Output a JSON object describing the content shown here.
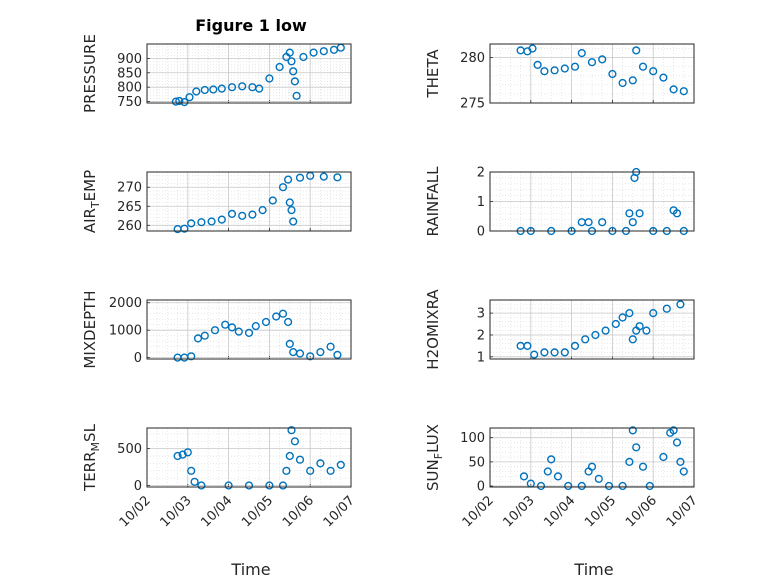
{
  "figure": {
    "title": "Figure 1 low",
    "marker_color": "#0072BD",
    "x_tick_labels": [
      "10/02",
      "10/03",
      "10/04",
      "10/05",
      "10/06",
      "10/07"
    ],
    "x_axis_label": "Time"
  },
  "chart_data": [
    {
      "type": "scatter",
      "name": "pressure",
      "ylabel": "PRESSURE",
      "title": "Figure 1 low",
      "ylim": [
        745,
        950
      ],
      "yticks": [
        750,
        800,
        850,
        900
      ],
      "grid": true,
      "minor_grid": true,
      "x": [
        "10/02 17:00",
        "10/02 19:00",
        "10/02 22:00",
        "10/03 01:00",
        "10/03 05:00",
        "10/03 10:00",
        "10/03 15:00",
        "10/03 20:00",
        "10/04 02:00",
        "10/04 08:00",
        "10/04 14:00",
        "10/04 18:00",
        "10/05 00:00",
        "10/05 06:00",
        "10/05 10:00",
        "10/05 12:00",
        "10/05 13:00",
        "10/05 14:00",
        "10/05 15:00",
        "10/05 16:00",
        "10/05 20:00",
        "10/06 02:00",
        "10/06 08:00",
        "10/06 14:00",
        "10/06 18:00"
      ],
      "values": [
        750,
        752,
        748,
        765,
        785,
        790,
        792,
        795,
        800,
        803,
        800,
        795,
        830,
        870,
        905,
        920,
        890,
        855,
        820,
        770,
        905,
        920,
        925,
        930,
        937
      ]
    },
    {
      "type": "scatter",
      "name": "theta",
      "ylabel": "THETA",
      "ylim": [
        275,
        281.5
      ],
      "yticks": [
        275,
        280
      ],
      "grid": true,
      "minor_grid": true,
      "x": [
        "10/02 18:00",
        "10/02 22:00",
        "10/03 01:00",
        "10/03 04:00",
        "10/03 08:00",
        "10/03 14:00",
        "10/03 20:00",
        "10/04 02:00",
        "10/04 06:00",
        "10/04 12:00",
        "10/04 18:00",
        "10/05 00:00",
        "10/05 06:00",
        "10/05 12:00",
        "10/05 14:00",
        "10/05 18:00",
        "10/06 00:00",
        "10/06 06:00",
        "10/06 12:00",
        "10/06 18:00"
      ],
      "values": [
        280.8,
        280.7,
        281.0,
        279.2,
        278.5,
        278.6,
        278.8,
        279.0,
        280.5,
        279.5,
        279.8,
        278.2,
        277.2,
        277.5,
        280.8,
        279.0,
        278.5,
        277.8,
        276.5,
        276.3
      ]
    },
    {
      "type": "scatter",
      "name": "air_temp",
      "ylabel": "AIR_TEMP",
      "ylim": [
        258.5,
        274
      ],
      "yticks": [
        260,
        265,
        270
      ],
      "grid": true,
      "minor_grid": true,
      "x": [
        "10/02 18:00",
        "10/02 22:00",
        "10/03 02:00",
        "10/03 08:00",
        "10/03 14:00",
        "10/03 20:00",
        "10/04 02:00",
        "10/04 08:00",
        "10/04 14:00",
        "10/04 20:00",
        "10/05 02:00",
        "10/05 08:00",
        "10/05 11:00",
        "10/05 12:00",
        "10/05 13:00",
        "10/05 14:00",
        "10/05 18:00",
        "10/06 00:00",
        "10/06 08:00",
        "10/06 16:00"
      ],
      "values": [
        259.0,
        259.1,
        260.5,
        260.8,
        261.0,
        261.5,
        263.0,
        262.5,
        262.8,
        264.0,
        266.5,
        270.0,
        272.0,
        266.0,
        264.0,
        261.0,
        272.5,
        273.0,
        272.8,
        272.6
      ]
    },
    {
      "type": "scatter",
      "name": "rainfall",
      "ylabel": "RAINFALL",
      "ylim": [
        0,
        2
      ],
      "yticks": [
        0,
        1,
        2
      ],
      "grid": true,
      "minor_grid": true,
      "x": [
        "10/02 18:00",
        "10/03 00:00",
        "10/03 12:00",
        "10/04 00:00",
        "10/04 06:00",
        "10/04 10:00",
        "10/04 12:00",
        "10/04 18:00",
        "10/05 00:00",
        "10/05 08:00",
        "10/05 10:00",
        "10/05 12:00",
        "10/05 13:00",
        "10/05 14:00",
        "10/05 16:00",
        "10/06 00:00",
        "10/06 08:00",
        "10/06 12:00",
        "10/06 14:00",
        "10/06 18:00"
      ],
      "values": [
        0,
        0,
        0,
        0,
        0.3,
        0.3,
        0,
        0.3,
        0,
        0,
        0.6,
        0.3,
        1.8,
        2.0,
        0.6,
        0,
        0,
        0.7,
        0.6,
        0
      ]
    },
    {
      "type": "scatter",
      "name": "mixdepth",
      "ylabel": "MIXDEPTH",
      "ylim": [
        -50,
        2100
      ],
      "yticks": [
        0,
        1000,
        2000
      ],
      "grid": true,
      "minor_grid": true,
      "x": [
        "10/02 18:00",
        "10/02 22:00",
        "10/03 02:00",
        "10/03 06:00",
        "10/03 10:00",
        "10/03 16:00",
        "10/03 22:00",
        "10/04 02:00",
        "10/04 06:00",
        "10/04 12:00",
        "10/04 16:00",
        "10/04 22:00",
        "10/05 04:00",
        "10/05 08:00",
        "10/05 11:00",
        "10/05 12:00",
        "10/05 14:00",
        "10/05 18:00",
        "10/06 00:00",
        "10/06 06:00",
        "10/06 12:00",
        "10/06 16:00"
      ],
      "values": [
        0,
        0,
        50,
        700,
        800,
        1000,
        1200,
        1100,
        950,
        900,
        1150,
        1300,
        1500,
        1600,
        1300,
        500,
        200,
        150,
        50,
        200,
        400,
        100
      ]
    },
    {
      "type": "scatter",
      "name": "h2omixra",
      "ylabel": "H2OMIXRA",
      "ylim": [
        0.9,
        3.6
      ],
      "yticks": [
        1,
        2,
        3
      ],
      "grid": true,
      "minor_grid": true,
      "x": [
        "10/02 18:00",
        "10/02 22:00",
        "10/03 02:00",
        "10/03 08:00",
        "10/03 14:00",
        "10/03 20:00",
        "10/04 02:00",
        "10/04 08:00",
        "10/04 14:00",
        "10/04 20:00",
        "10/05 02:00",
        "10/05 06:00",
        "10/05 10:00",
        "10/05 12:00",
        "10/05 14:00",
        "10/05 16:00",
        "10/05 20:00",
        "10/06 00:00",
        "10/06 08:00",
        "10/06 16:00"
      ],
      "values": [
        1.5,
        1.5,
        1.1,
        1.2,
        1.2,
        1.2,
        1.5,
        1.8,
        2.0,
        2.2,
        2.5,
        2.8,
        3.0,
        1.8,
        2.2,
        2.4,
        2.2,
        3.0,
        3.2,
        3.4
      ]
    },
    {
      "type": "scatter",
      "name": "terr_msl",
      "ylabel": "TERR_MSL",
      "ylim": [
        -20,
        780
      ],
      "yticks": [
        0,
        500
      ],
      "grid": true,
      "minor_grid": true,
      "x": [
        "10/02 18:00",
        "10/02 21:00",
        "10/03 00:00",
        "10/03 02:00",
        "10/03 04:00",
        "10/03 08:00",
        "10/04 00:00",
        "10/04 12:00",
        "10/05 00:00",
        "10/05 08:00",
        "10/05 10:00",
        "10/05 12:00",
        "10/05 13:00",
        "10/05 15:00",
        "10/05 18:00",
        "10/06 00:00",
        "10/06 06:00",
        "10/06 12:00",
        "10/06 18:00"
      ],
      "values": [
        400,
        420,
        450,
        200,
        50,
        0,
        0,
        0,
        0,
        0,
        200,
        400,
        750,
        600,
        350,
        200,
        300,
        200,
        280
      ]
    },
    {
      "type": "scatter",
      "name": "sun_flux",
      "ylabel": "SUN_FLUX",
      "ylim": [
        -2,
        120
      ],
      "yticks": [
        0,
        50,
        100
      ],
      "grid": true,
      "minor_grid": true,
      "x": [
        "10/02 20:00",
        "10/03 00:00",
        "10/03 06:00",
        "10/03 10:00",
        "10/03 12:00",
        "10/03 16:00",
        "10/03 22:00",
        "10/04 06:00",
        "10/04 10:00",
        "10/04 12:00",
        "10/04 16:00",
        "10/04 22:00",
        "10/05 06:00",
        "10/05 10:00",
        "10/05 12:00",
        "10/05 14:00",
        "10/05 18:00",
        "10/05 22:00",
        "10/06 06:00",
        "10/06 10:00",
        "10/06 12:00",
        "10/06 14:00",
        "10/06 16:00",
        "10/06 18:00"
      ],
      "values": [
        20,
        5,
        0,
        30,
        55,
        20,
        0,
        0,
        30,
        40,
        15,
        0,
        0,
        50,
        115,
        80,
        40,
        0,
        60,
        110,
        115,
        90,
        50,
        30
      ]
    }
  ]
}
